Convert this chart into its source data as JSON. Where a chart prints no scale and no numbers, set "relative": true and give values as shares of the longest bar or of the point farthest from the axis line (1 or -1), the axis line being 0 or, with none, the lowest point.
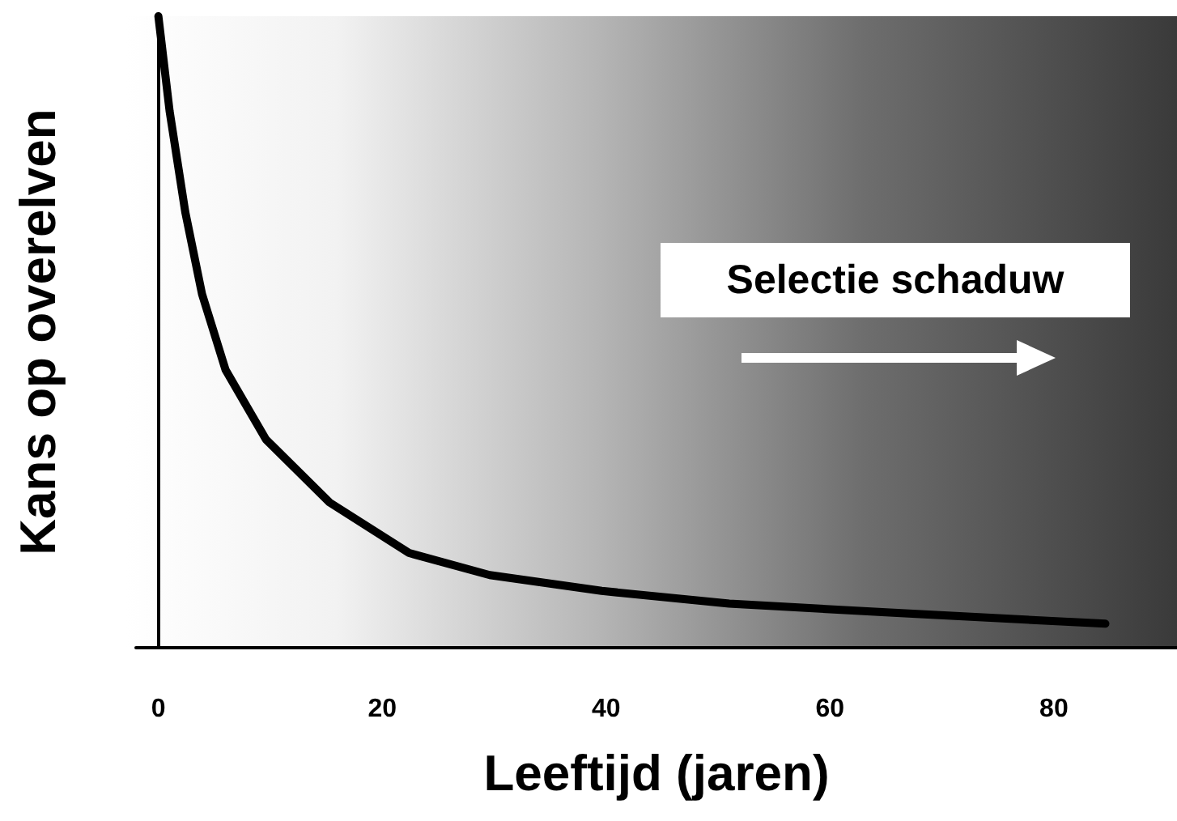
{
  "chart_data": {
    "type": "line",
    "relative": true,
    "xlabel": "Leeftijd (jaren)",
    "ylabel": "Kans op overelven",
    "annotations": [
      "Selectie schaduw"
    ],
    "x": [
      0,
      1,
      2.4,
      3.9,
      6,
      9.6,
      15.3,
      22.4,
      29.6,
      39.6,
      51,
      65,
      84.6
    ],
    "series": [
      {
        "color": "#000000",
        "values": [
          1,
          0.85,
          0.69,
          0.56,
          0.44,
          0.33,
          0.23,
          0.15,
          0.115,
          0.09,
          0.07,
          0.056,
          0.038
        ]
      }
    ],
    "xlim": [
      -2,
      91
    ],
    "xticks": [
      0,
      20,
      40,
      60,
      80
    ],
    "marker": "none",
    "line_style": "solid"
  }
}
